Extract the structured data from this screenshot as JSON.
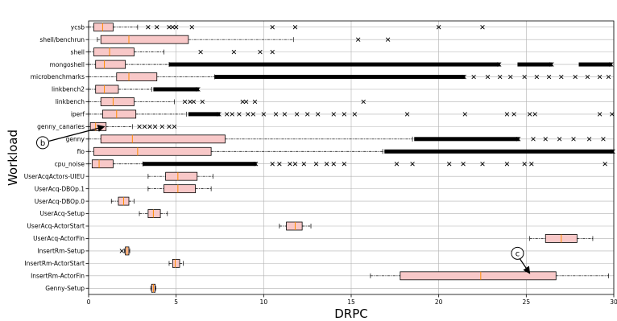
{
  "chart_data": {
    "type": "boxplot",
    "orientation": "horizontal",
    "xlabel": "DRPC",
    "ylabel": "Workload",
    "xlim": [
      0,
      30
    ],
    "xticks": [
      0,
      5,
      10,
      15,
      20,
      25,
      30
    ],
    "grid": true,
    "colors": {
      "box_fill": "#f8c8c8",
      "box_edge": "#000000",
      "median": "#ff8c00",
      "whisker": "#000000",
      "grid": "#b0b0b0"
    },
    "categories": [
      {
        "name": "ycsb",
        "q1": 0.3,
        "median": 0.8,
        "q3": 1.4,
        "wlo": 0.0,
        "whi": 2.8,
        "outliers": [
          3.4,
          3.9,
          4.6,
          4.8,
          5.0,
          5.9,
          10.5,
          11.8,
          20.0,
          22.5
        ]
      },
      {
        "name": "shell/benchrun",
        "q1": 0.7,
        "median": 2.3,
        "q3": 5.7,
        "wlo": 0.5,
        "whi": 11.7,
        "outliers": [
          15.4,
          17.1
        ]
      },
      {
        "name": "shell",
        "q1": 0.3,
        "median": 1.2,
        "q3": 2.6,
        "wlo": 0.0,
        "whi": 4.3,
        "outliers": [
          6.4,
          8.3,
          9.8,
          10.5
        ]
      },
      {
        "name": "mongoshell",
        "q1": 0.4,
        "median": 0.9,
        "q3": 2.1,
        "wlo": 0.0,
        "whi": 4.6,
        "dense": [
          [
            4.6,
            23.5
          ],
          [
            24.5,
            26.5
          ],
          [
            28.0,
            29.9
          ]
        ],
        "outliers": []
      },
      {
        "name": "microbenchmarks",
        "q1": 1.6,
        "median": 2.3,
        "q3": 3.9,
        "wlo": 0.0,
        "whi": 7.2,
        "dense": [
          [
            7.2,
            21.5
          ]
        ],
        "outliers": [
          22.0,
          22.8,
          23.5,
          24.1,
          24.9,
          25.6,
          26.3,
          27.0,
          27.8,
          28.5,
          29.2,
          29.7
        ]
      },
      {
        "name": "linkbench2",
        "q1": 0.4,
        "median": 0.9,
        "q3": 1.7,
        "wlo": 0.0,
        "whi": 3.6,
        "dense": [
          [
            3.7,
            6.3
          ]
        ],
        "outliers": []
      },
      {
        "name": "linkbench",
        "q1": 0.7,
        "median": 1.4,
        "q3": 2.6,
        "wlo": 0.0,
        "whi": 4.9,
        "outliers": [
          5.5,
          5.8,
          6.0,
          6.5,
          8.8,
          9.0,
          9.5,
          15.7
        ]
      },
      {
        "name": "iperf",
        "q1": 0.8,
        "median": 1.6,
        "q3": 2.7,
        "wlo": 0.0,
        "whi": 5.6,
        "dense": [
          [
            5.7,
            7.5
          ]
        ],
        "outliers": [
          7.9,
          8.2,
          8.6,
          9.1,
          9.4,
          10.0,
          10.7,
          11.2,
          11.9,
          12.5,
          13.1,
          14.0,
          14.6,
          15.2,
          18.2,
          21.5,
          23.9,
          24.3,
          25.2,
          25.5,
          29.2,
          29.9
        ]
      },
      {
        "name": "genny_canaries",
        "q1": 0.1,
        "median": 0.4,
        "q3": 1.0,
        "wlo": 0.0,
        "whi": 2.5,
        "outliers": [
          2.9,
          3.2,
          3.5,
          3.8,
          4.2,
          4.6,
          4.9
        ]
      },
      {
        "name": "genny",
        "q1": 0.7,
        "median": 2.5,
        "q3": 7.8,
        "wlo": 0.0,
        "whi": 18.5,
        "dense": [
          [
            18.6,
            24.6
          ]
        ],
        "outliers": [
          25.4,
          26.1,
          26.9,
          27.7,
          28.6,
          29.4
        ]
      },
      {
        "name": "fio",
        "q1": 0.3,
        "median": 2.8,
        "q3": 7.0,
        "wlo": 0.0,
        "whi": 16.8,
        "dense": [
          [
            16.9,
            30.0
          ]
        ],
        "outliers": []
      },
      {
        "name": "cpu_noise",
        "q1": 0.2,
        "median": 0.6,
        "q3": 1.4,
        "wlo": 0.0,
        "whi": 3.1,
        "dense": [
          [
            3.1,
            9.6
          ]
        ],
        "outliers": [
          10.5,
          10.9,
          11.5,
          11.8,
          12.3,
          13.0,
          13.6,
          14.0,
          14.6,
          17.6,
          18.5,
          20.6,
          21.4,
          22.5,
          23.9,
          24.9,
          25.3,
          29.5
        ]
      },
      {
        "name": "UserAcqActors-UIEU",
        "q1": 4.4,
        "median": 5.1,
        "q3": 6.2,
        "wlo": 3.4,
        "whi": 7.1,
        "outliers": []
      },
      {
        "name": "UserAcq-DBOp.1",
        "q1": 4.3,
        "median": 5.1,
        "q3": 6.1,
        "wlo": 3.4,
        "whi": 7.0,
        "outliers": []
      },
      {
        "name": "UserAcq-DBOp.0",
        "q1": 1.7,
        "median": 2.0,
        "q3": 2.3,
        "wlo": 1.3,
        "whi": 2.6,
        "outliers": []
      },
      {
        "name": "UserAcq-Setup",
        "q1": 3.4,
        "median": 3.7,
        "q3": 4.1,
        "wlo": 2.9,
        "whi": 4.5,
        "outliers": []
      },
      {
        "name": "UserAcq-ActorStart",
        "q1": 11.3,
        "median": 11.8,
        "q3": 12.2,
        "wlo": 10.9,
        "whi": 12.7,
        "outliers": []
      },
      {
        "name": "UserAcq-ActorFin",
        "q1": 26.1,
        "median": 27.0,
        "q3": 27.9,
        "wlo": 25.2,
        "whi": 28.8,
        "outliers": []
      },
      {
        "name": "InsertRm-Setup",
        "q1": 2.1,
        "median": 2.2,
        "q3": 2.3,
        "wlo": 2.05,
        "whi": 2.35,
        "outliers": [
          1.9
        ]
      },
      {
        "name": "InsertRm-ActorStart",
        "q1": 4.8,
        "median": 4.95,
        "q3": 5.2,
        "wlo": 4.6,
        "whi": 5.4,
        "outliers": []
      },
      {
        "name": "InsertRm-ActorFin",
        "q1": 17.8,
        "median": 22.4,
        "q3": 26.7,
        "wlo": 16.1,
        "whi": 29.7,
        "outliers": []
      },
      {
        "name": "Genny-Setup",
        "q1": 3.6,
        "median": 3.7,
        "q3": 3.8,
        "wlo": 3.55,
        "whi": 3.85,
        "outliers": []
      }
    ],
    "annotations": [
      {
        "label": "b",
        "points_to": "genny_canaries",
        "target_x": 0.9
      },
      {
        "label": "c",
        "points_to": "InsertRm-ActorFin",
        "target_x": 25.2
      }
    ]
  }
}
